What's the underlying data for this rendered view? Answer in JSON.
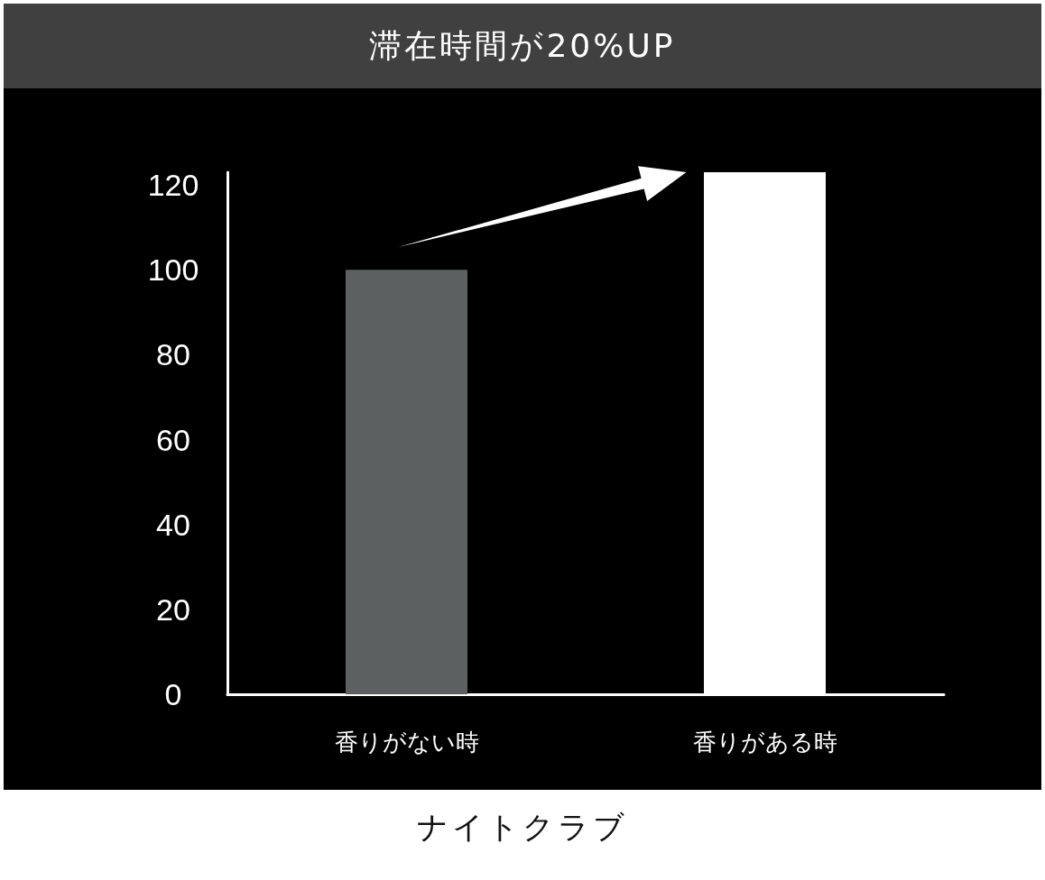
{
  "chart_data": {
    "type": "bar",
    "title": "滞在時間が20%UP",
    "xlabel": "ナイトクラブ",
    "categories": [
      "香りがない時",
      "香りがある時"
    ],
    "values": [
      100,
      123
    ],
    "colors": [
      "#5d6060",
      "#ffffff"
    ],
    "ylim": [
      0,
      123
    ],
    "yticks": [
      0,
      20,
      40,
      60,
      80,
      100,
      120
    ],
    "grid": false
  }
}
